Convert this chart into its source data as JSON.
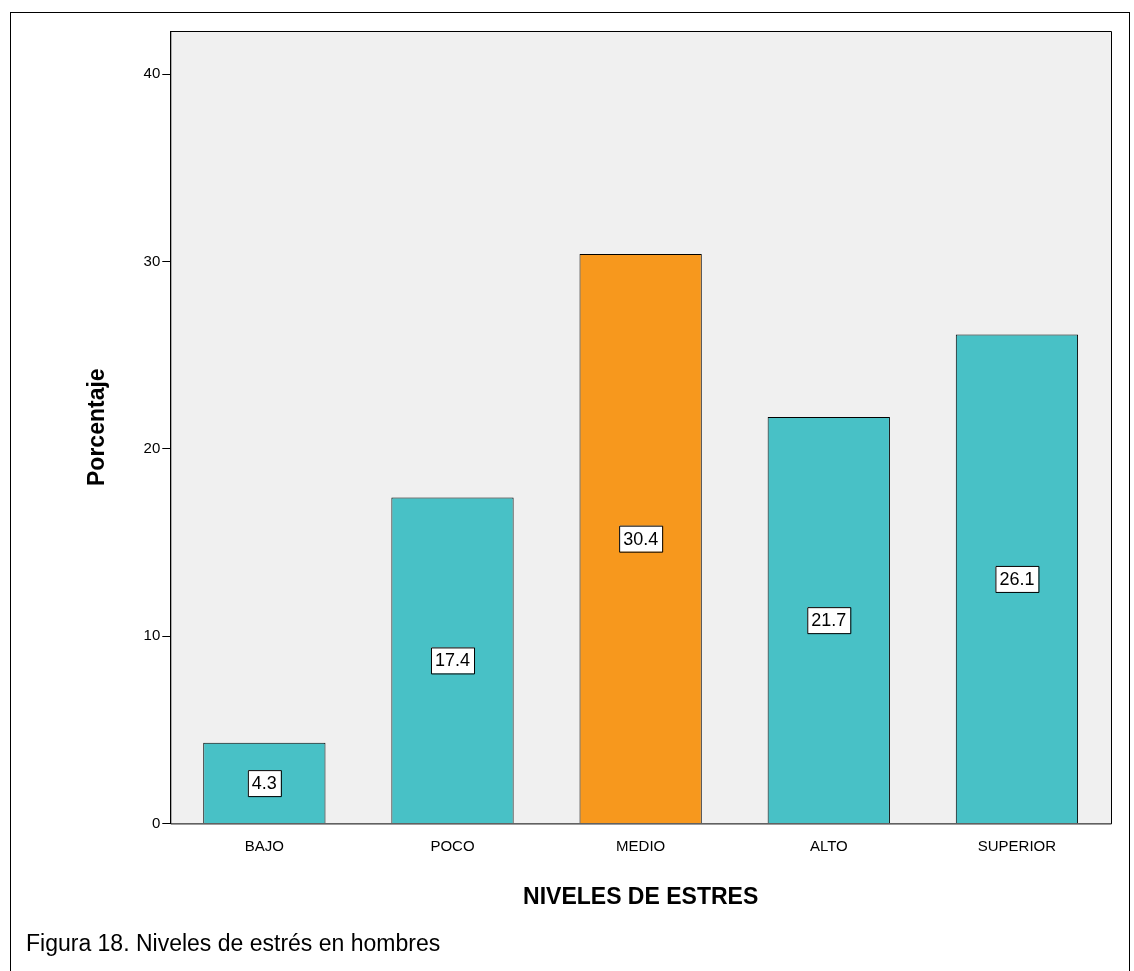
{
  "chart_data": {
    "type": "bar",
    "xlabel": "NIVELES DE ESTRES",
    "ylabel": "Porcentaje",
    "categories": [
      "BAJO",
      "POCO",
      "MEDIO",
      "ALTO",
      "SUPERIOR"
    ],
    "values": [
      4.3,
      17.4,
      30.4,
      21.7,
      26.1
    ],
    "colors": [
      "#48c1c6",
      "#48c1c6",
      "#f7981d",
      "#48c1c6",
      "#48c1c6"
    ],
    "ylim": [
      0,
      42.3
    ],
    "yticks": [
      0,
      10,
      20,
      30,
      40
    ],
    "grid": false,
    "legend": false,
    "data_labels": true,
    "annotations": [
      "Figura 18.  Niveles de estrés en hombres"
    ]
  }
}
